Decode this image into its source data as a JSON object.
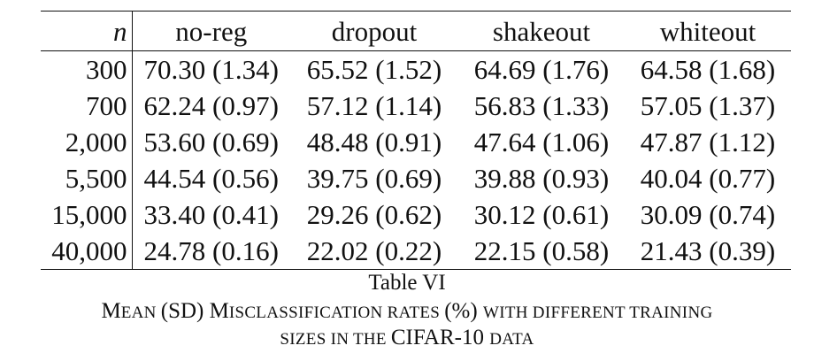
{
  "table": {
    "headers": [
      "n",
      "no-reg",
      "dropout",
      "shakeout",
      "whiteout"
    ],
    "rows": [
      [
        "300",
        "70.30 (1.34)",
        "65.52 (1.52)",
        "64.69 (1.76)",
        "64.58 (1.68)"
      ],
      [
        "700",
        "62.24 (0.97)",
        "57.12 (1.14)",
        "56.83 (1.33)",
        "57.05 (1.37)"
      ],
      [
        "2,000",
        "53.60 (0.69)",
        "48.48 (0.91)",
        "47.64 (1.06)",
        "47.87 (1.12)"
      ],
      [
        "5,500",
        "44.54 (0.56)",
        "39.75 (0.69)",
        "39.88 (0.93)",
        "40.04 (0.77)"
      ],
      [
        "15,000",
        "33.40 (0.41)",
        "29.26 (0.62)",
        "30.12 (0.61)",
        "30.09 (0.74)"
      ],
      [
        "40,000",
        "24.78 (0.16)",
        "22.02 (0.22)",
        "22.15 (0.58)",
        "21.43 (0.39)"
      ]
    ]
  },
  "caption": {
    "label": "Table VI",
    "line1": [
      {
        "t": "M",
        "s": "big"
      },
      {
        "t": "EAN ",
        "s": "small"
      },
      {
        "t": "(SD) M",
        "s": "big"
      },
      {
        "t": "ISCLASSIFICATION RATES ",
        "s": "small"
      },
      {
        "t": "(%) ",
        "s": "big"
      },
      {
        "t": "WITH DIFFERENT TRAINING",
        "s": "small"
      }
    ],
    "line2": [
      {
        "t": "SIZES IN THE ",
        "s": "small"
      },
      {
        "t": "CIFAR-10 ",
        "s": "big"
      },
      {
        "t": "DATA",
        "s": "small"
      }
    ]
  }
}
